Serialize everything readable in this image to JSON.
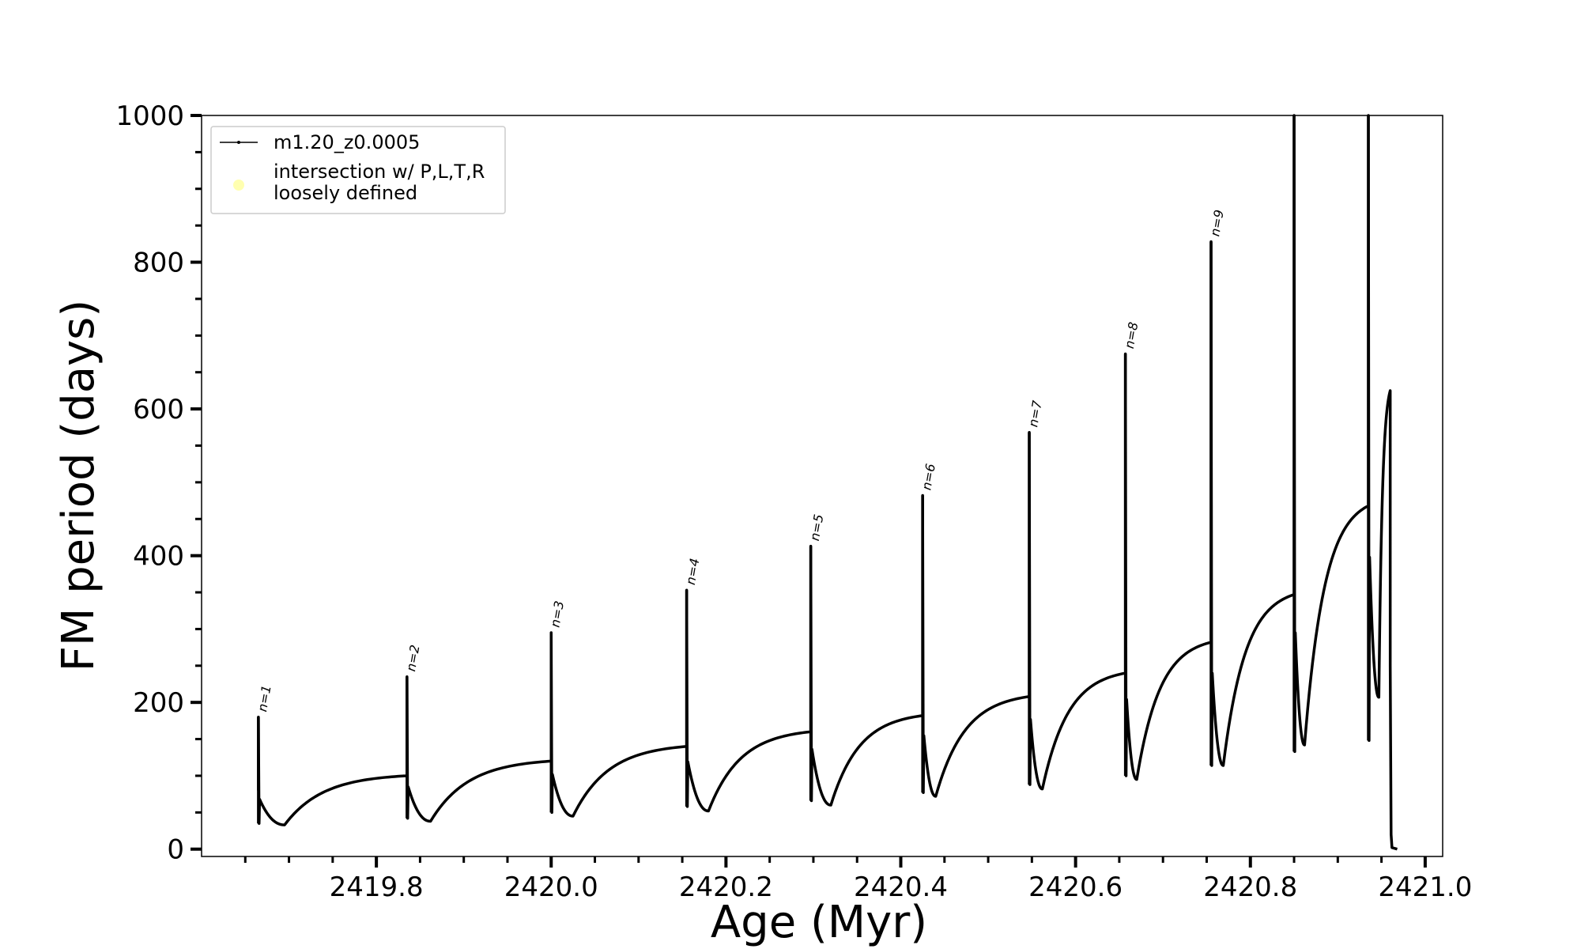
{
  "chart_data": {
    "type": "line",
    "title": "",
    "xlabel": "Age (Myr)",
    "ylabel": "FM period (days)",
    "xlim": [
      2419.6,
      2421.02
    ],
    "ylim": [
      -10,
      1000
    ],
    "xticks": [
      2419.8,
      2420.0,
      2420.2,
      2420.4,
      2420.6,
      2420.8,
      2421.0
    ],
    "xtick_labels": [
      "2419.8",
      "2420.0",
      "2420.2",
      "2420.4",
      "2420.6",
      "2420.8",
      "2421.0"
    ],
    "yticks": [
      0,
      200,
      400,
      600,
      800,
      1000
    ],
    "ytick_labels": [
      "0",
      "200",
      "400",
      "600",
      "800",
      "1000"
    ],
    "grid": false,
    "legend": {
      "placement": "top-left",
      "entries": [
        {
          "label": "m1.20_z0.0005",
          "color": "#000000",
          "marker": "line-dot"
        },
        {
          "label_lines": [
            "intersection w/ P,L,T,R",
            "loosely defined"
          ],
          "color": "#ffffb0",
          "marker": "circle"
        }
      ]
    },
    "series": [
      {
        "name": "m1.20_z0.0005",
        "color": "#000000",
        "pulses": [
          {
            "n": "n=1",
            "x": 2419.665,
            "peak": 180,
            "low": 35,
            "base_start": 80,
            "min_x": 2419.695,
            "min_y": 33,
            "next_base": 100
          },
          {
            "n": "n=2",
            "x": 2419.835,
            "peak": 235,
            "low": 42,
            "base_start": 100,
            "min_x": 2419.862,
            "min_y": 38,
            "next_base": 120
          },
          {
            "n": "n=3",
            "x": 2420.0,
            "peak": 295,
            "low": 50,
            "base_start": 120,
            "min_x": 2420.025,
            "min_y": 45,
            "next_base": 140
          },
          {
            "n": "n=4",
            "x": 2420.155,
            "peak": 353,
            "low": 58,
            "base_start": 140,
            "min_x": 2420.18,
            "min_y": 52,
            "next_base": 160
          },
          {
            "n": "n=5",
            "x": 2420.297,
            "peak": 413,
            "low": 66,
            "base_start": 160,
            "min_x": 2420.32,
            "min_y": 60,
            "next_base": 182
          },
          {
            "n": "n=6",
            "x": 2420.425,
            "peak": 482,
            "low": 77,
            "base_start": 182,
            "min_x": 2420.44,
            "min_y": 72,
            "next_base": 208
          },
          {
            "n": "n=7",
            "x": 2420.547,
            "peak": 568,
            "low": 88,
            "base_start": 208,
            "min_x": 2420.562,
            "min_y": 82,
            "next_base": 240
          },
          {
            "n": "n=8",
            "x": 2420.657,
            "peak": 675,
            "low": 100,
            "base_start": 240,
            "min_x": 2420.67,
            "min_y": 95,
            "next_base": 282
          },
          {
            "n": "n=9",
            "x": 2420.755,
            "peak": 828,
            "low": 114,
            "base_start": 282,
            "min_x": 2420.769,
            "min_y": 114,
            "next_base": 347
          },
          {
            "n": "",
            "x": 2420.85,
            "peak": 1000,
            "low": 133,
            "base_start": 347,
            "min_x": 2420.862,
            "min_y": 142,
            "next_base": 468
          },
          {
            "n": "",
            "x": 2420.935,
            "peak": 1000,
            "low": 148,
            "base_start": 468,
            "min_x": 2420.947,
            "min_y": 207,
            "next_base": 625
          }
        ],
        "start": {
          "x": 2419.665,
          "y": 80
        },
        "end": {
          "x": 2420.96,
          "y": 0
        }
      }
    ]
  }
}
